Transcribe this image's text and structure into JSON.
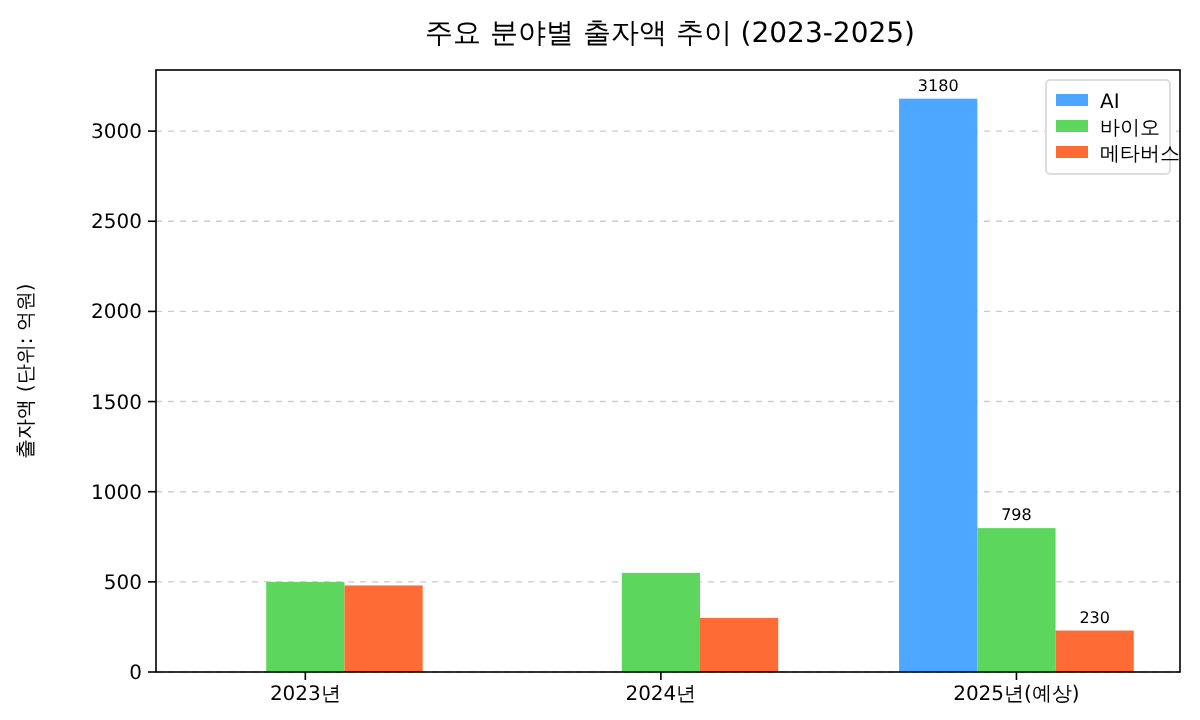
{
  "chart_data": {
    "type": "bar",
    "title": "주요 분야별 출자액 추이 (2023-2025)",
    "ylabel": "출자액 (단위: 억원)",
    "categories": [
      "2023년",
      "2024년",
      "2025년(예상)"
    ],
    "series": [
      {
        "name": "AI",
        "color": "#4da6ff",
        "values": [
          null,
          null,
          3180
        ],
        "value_labels": [
          null,
          null,
          "3180"
        ]
      },
      {
        "name": "바이오",
        "color": "#5cd65c",
        "values": [
          500,
          550,
          798
        ],
        "value_labels": [
          null,
          null,
          "798"
        ]
      },
      {
        "name": "메타버스",
        "color": "#ff6b35",
        "values": [
          480,
          300,
          230
        ],
        "value_labels": [
          null,
          null,
          "230"
        ]
      }
    ],
    "ylim": [
      0,
      3339
    ],
    "yticks": [
      0,
      500,
      1000,
      1500,
      2000,
      2500,
      3000
    ],
    "grid": "y",
    "legend": "top right"
  }
}
